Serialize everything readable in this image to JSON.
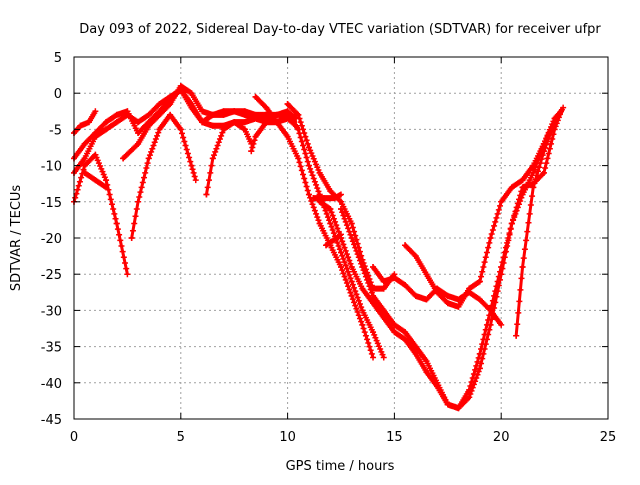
{
  "chart_data": {
    "type": "scatter",
    "title": "Day 093 of 2022, Sidereal Day-to-day VTEC variation (SDTVAR) for receiver ufpr",
    "xlabel": "GPS time / hours",
    "ylabel": "SDTVAR / TECUs",
    "xlim": [
      0,
      25
    ],
    "ylim": [
      -45,
      5
    ],
    "xticks": [
      "0",
      "5",
      "10",
      "15",
      "20",
      "25"
    ],
    "yticks": [
      "5",
      "0",
      "-5",
      "-10",
      "-15",
      "-20",
      "-25",
      "-30",
      "-35",
      "-40",
      "-45"
    ],
    "grid": true,
    "marker": "+",
    "color": "#ff0000",
    "series": [
      {
        "x": [
          0.0,
          0.5,
          1.0,
          1.5,
          2.0,
          2.5
        ],
        "y": [
          -15,
          -10,
          -8.5,
          -12,
          -18,
          -25
        ]
      },
      {
        "x": [
          0.0,
          0.5,
          1.0,
          1.5,
          2.0,
          2.5,
          3.0,
          3.5,
          4.0,
          4.5,
          5.0,
          5.5,
          6.0,
          6.5,
          7.0,
          7.5,
          8.0,
          8.5,
          9.0,
          9.5,
          10.0,
          10.3
        ],
        "y": [
          -11,
          -9,
          -6,
          -5,
          -4,
          -3,
          -4,
          -3,
          -1.5,
          -0.5,
          0.5,
          -2,
          -4,
          -4.5,
          -4.5,
          -4,
          -4,
          -3.5,
          -3.5,
          -3,
          -3,
          -4
        ]
      },
      {
        "x": [
          0.0,
          0.5,
          1.0,
          1.5,
          2.0,
          2.5,
          3.0,
          3.5,
          4.0,
          4.5,
          5.0,
          5.5,
          6.0,
          6.5,
          7.0,
          7.5,
          8.0,
          8.5,
          9.0,
          9.5,
          10.0,
          10.4
        ],
        "y": [
          -9,
          -7,
          -5.5,
          -4,
          -3,
          -2.5,
          -5.5,
          -4,
          -2.5,
          -1,
          0.5,
          -1.5,
          -4,
          -3,
          -2.5,
          -2.5,
          -3,
          -3.5,
          -4,
          -4,
          -3.5,
          -4.5
        ]
      },
      {
        "x": [
          0.0,
          0.3,
          0.7,
          1.0
        ],
        "y": [
          -5.5,
          -4.5,
          -4,
          -2.5
        ]
      },
      {
        "x": [
          0.5,
          1.0,
          1.5
        ],
        "y": [
          -11,
          -12,
          -13
        ]
      },
      {
        "x": [
          2.3,
          3.0,
          3.5,
          4.0,
          4.5,
          5.0,
          5.5,
          6.0,
          6.5,
          7.0,
          7.5,
          8.0,
          8.5,
          9.0,
          9.5,
          10.0,
          10.4
        ],
        "y": [
          -9,
          -7,
          -4.5,
          -3,
          -1.5,
          1,
          0,
          -2.5,
          -3,
          -3,
          -2.5,
          -2.5,
          -3,
          -3,
          -3,
          -2.5,
          -3.5
        ]
      },
      {
        "x": [
          2.7,
          3.0,
          3.5,
          4.0,
          4.5,
          5.0,
          5.5,
          5.7
        ],
        "y": [
          -20,
          -15,
          -9,
          -5,
          -3,
          -5,
          -10,
          -12
        ]
      },
      {
        "x": [
          6.2,
          6.5,
          7.0,
          7.5,
          8.0,
          8.3
        ],
        "y": [
          -14,
          -9,
          -5,
          -4,
          -5,
          -7
        ]
      },
      {
        "x": [
          8.3,
          8.5,
          9.0,
          9.5,
          10.0,
          10.5,
          11.0,
          11.5,
          12.0,
          12.5,
          13.0,
          13.5,
          14.0
        ],
        "y": [
          -8,
          -6,
          -4,
          -4,
          -6,
          -9,
          -14,
          -18,
          -21,
          -24,
          -28,
          -32,
          -36.5
        ]
      },
      {
        "x": [
          8.5,
          9.0,
          9.5,
          10.0,
          10.5,
          11.0,
          11.5,
          12.0,
          12.5,
          13.0,
          13.5,
          14.0,
          14.5
        ],
        "y": [
          -0.5,
          -2,
          -4,
          -3,
          -5,
          -10,
          -14,
          -18,
          -22,
          -26,
          -30,
          -33,
          -36.5
        ]
      },
      {
        "x": [
          10.0,
          10.5,
          11.0,
          11.5,
          12.0,
          12.5,
          13.0,
          13.5,
          14.0,
          14.5,
          15.0
        ],
        "y": [
          -1.5,
          -3,
          -7.5,
          -11,
          -13.5,
          -15,
          -18,
          -23,
          -27,
          -27,
          -25
        ]
      },
      {
        "x": [
          11.2,
          11.7,
          12.2,
          12.5
        ],
        "y": [
          -14.5,
          -14.5,
          -14.5,
          -14
        ]
      },
      {
        "x": [
          11.8,
          12.3,
          12.5
        ],
        "y": [
          -21,
          -20,
          -19.5
        ]
      },
      {
        "x": [
          11.5,
          12.0,
          12.5,
          13.0,
          13.5,
          14.0,
          14.5,
          15.0,
          15.5,
          16.0,
          16.5,
          17.0,
          17.5,
          18.0,
          18.5,
          19.0,
          19.5,
          20.0,
          20.5,
          21.0,
          21.5,
          22.0,
          22.5,
          22.8
        ],
        "y": [
          -15,
          -16,
          -20,
          -24,
          -27,
          -29,
          -31,
          -33,
          -34,
          -36,
          -38.5,
          -40.5,
          -43,
          -43.5,
          -42,
          -38,
          -32,
          -25,
          -18,
          -13,
          -12.5,
          -11,
          -5,
          -2.5
        ]
      },
      {
        "x": [
          12.5,
          13.0,
          13.5,
          14.0,
          14.5,
          15.0,
          15.5,
          16.0,
          16.5,
          17.0,
          17.5,
          18.0,
          18.5,
          19.0,
          19.5,
          20.0,
          20.5,
          21.0,
          21.5,
          22.0,
          22.5,
          22.8
        ],
        "y": [
          -16,
          -20,
          -24,
          -28,
          -30,
          -32,
          -33,
          -35,
          -37,
          -40,
          -43,
          -43.5,
          -41,
          -36,
          -30,
          -24,
          -18,
          -14,
          -11,
          -7,
          -3.5,
          -2.5
        ]
      },
      {
        "x": [
          14.0,
          14.5,
          15.0,
          15.5,
          16.0,
          16.5,
          17.0,
          17.5,
          18.0,
          18.5,
          19.0,
          19.5,
          20.0
        ],
        "y": [
          -24,
          -26,
          -25.5,
          -26.5,
          -28,
          -28.5,
          -27,
          -28,
          -28.5,
          -27.5,
          -28.5,
          -30,
          -32
        ]
      },
      {
        "x": [
          15.5,
          16.0,
          16.5,
          17.0,
          17.5,
          18.0,
          18.5,
          19.0,
          19.5,
          20.0,
          20.5,
          21.0,
          21.5,
          22.0,
          22.5,
          22.8
        ],
        "y": [
          -21,
          -22.5,
          -25,
          -27.5,
          -29,
          -29.5,
          -27,
          -26,
          -20,
          -15,
          -13,
          -12,
          -10,
          -7,
          -4,
          -2.5
        ]
      },
      {
        "x": [
          20.7,
          21.0,
          21.5,
          22.0,
          22.5,
          22.9
        ],
        "y": [
          -33.5,
          -24,
          -13,
          -8,
          -4,
          -2
        ]
      }
    ]
  }
}
